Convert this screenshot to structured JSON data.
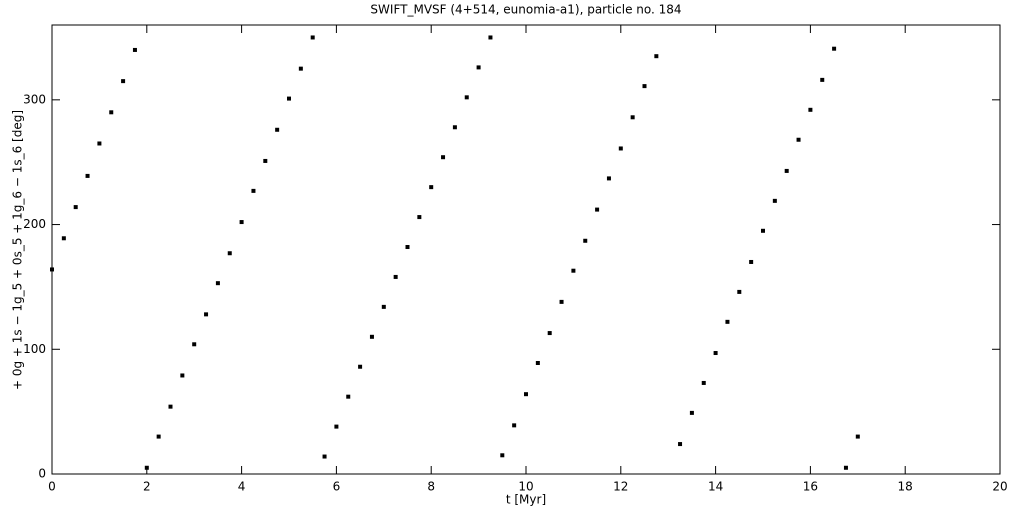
{
  "chart_data": {
    "type": "scatter",
    "title": "SWIFT_MVSF (4+514, eunomia-a1), particle no. 184",
    "x_label": "t [Myr]",
    "y_label": "+ 0g + 1s − 1g_5 + 0s_5 + 1g_6 − 1s_6 [deg]",
    "xlim": [
      0,
      20
    ],
    "ylim": [
      0,
      360
    ],
    "xticks": [
      0,
      2,
      4,
      6,
      8,
      10,
      12,
      14,
      16,
      18,
      20
    ],
    "yticks": [
      0,
      100,
      200,
      300
    ],
    "series": [
      {
        "color": "#000000",
        "x": [
          0,
          0.25,
          0.5,
          0.75,
          1.0,
          1.25,
          1.5,
          1.75,
          2.0,
          2.25,
          2.5,
          2.75,
          3.0,
          3.25,
          3.5,
          3.75,
          4.0,
          4.25,
          4.5,
          4.75,
          5.0,
          5.25,
          5.5,
          5.75,
          6.0,
          6.25,
          6.5,
          6.75,
          7.0,
          7.25,
          7.5,
          7.75,
          8.0,
          8.25,
          8.5,
          8.75,
          9.0,
          9.25,
          9.5,
          9.75,
          10.0,
          10.25,
          10.5,
          10.75,
          11.0,
          11.25,
          11.5,
          11.75,
          12.0,
          12.25,
          12.5,
          12.75,
          13.25,
          13.5,
          13.75,
          14.0,
          14.25,
          14.5,
          14.75,
          15.0,
          15.25,
          15.5,
          15.75,
          16.0,
          16.25,
          16.5,
          16.75,
          17.0
        ],
        "values": [
          164,
          189,
          214,
          239,
          265,
          290,
          315,
          340,
          5,
          30,
          54,
          79,
          104,
          128,
          153,
          177,
          202,
          227,
          251,
          276,
          301,
          325,
          350,
          14,
          38,
          62,
          86,
          110,
          134,
          158,
          182,
          206,
          230,
          254,
          278,
          302,
          326,
          350,
          15,
          39,
          64,
          89,
          113,
          138,
          163,
          187,
          212,
          237,
          261,
          286,
          311,
          335,
          24,
          49,
          73,
          97,
          122,
          146,
          170,
          195,
          219,
          243,
          268,
          292,
          316,
          341,
          5,
          30
        ]
      }
    ]
  }
}
